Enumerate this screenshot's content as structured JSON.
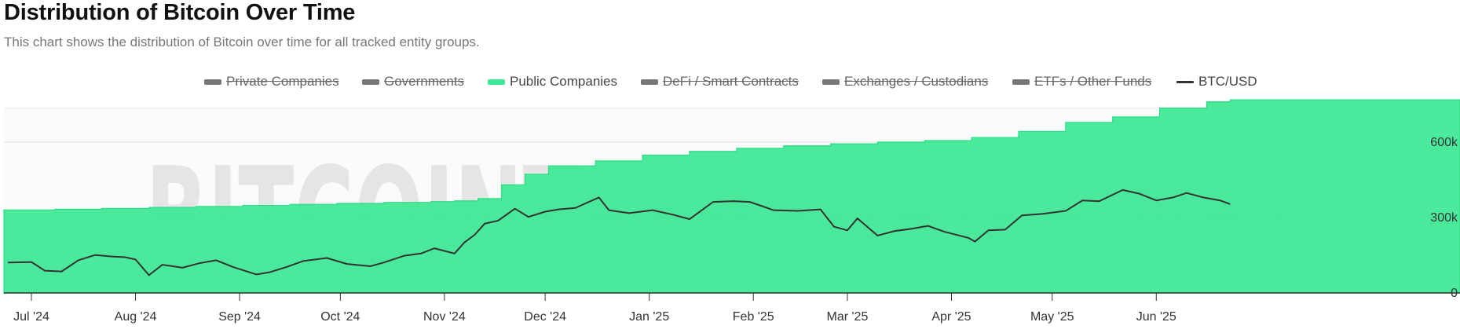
{
  "header": {
    "title": "Distribution of Bitcoin Over Time",
    "subtitle": "This chart shows the distribution of Bitcoin over time for all tracked entity groups."
  },
  "legend": [
    {
      "label": "Private Companies",
      "enabled": false,
      "color": "#777777",
      "kind": "area"
    },
    {
      "label": "Governments",
      "enabled": false,
      "color": "#777777",
      "kind": "area"
    },
    {
      "label": "Public Companies",
      "enabled": true,
      "color": "#40E896",
      "kind": "area"
    },
    {
      "label": "DeFi / Smart Contracts",
      "enabled": false,
      "color": "#777777",
      "kind": "area"
    },
    {
      "label": "Exchanges / Custodians",
      "enabled": false,
      "color": "#777777",
      "kind": "area"
    },
    {
      "label": "ETFs / Other Funds",
      "enabled": false,
      "color": "#777777",
      "kind": "area"
    },
    {
      "label": "BTC/USD",
      "enabled": true,
      "color": "#333333",
      "kind": "line"
    }
  ],
  "watermark": {
    "text": "BITCOINTREASURIES.NET",
    "tm": "tm"
  },
  "chart_data": {
    "type": "area",
    "x_ticks": [
      "Jul '24",
      "Aug '24",
      "Sep '24",
      "Oct '24",
      "Nov '24",
      "Dec '24",
      "Jan '25",
      "Feb '25",
      "Mar '25",
      "Apr '25",
      "May '25",
      "Jun '25"
    ],
    "y_ticks": [
      "0",
      "300k",
      "600k"
    ],
    "ylim": [
      0,
      800000
    ],
    "grid": true,
    "legend_position": "top-center",
    "series": [
      {
        "name": "Public Companies",
        "color": "#40E896",
        "x": [
          "2024-06-24",
          "2024-07-08",
          "2024-07-22",
          "2024-08-05",
          "2024-08-19",
          "2024-09-02",
          "2024-09-16",
          "2024-09-30",
          "2024-10-14",
          "2024-10-28",
          "2024-11-04",
          "2024-11-11",
          "2024-11-18",
          "2024-11-25",
          "2024-12-02",
          "2024-12-16",
          "2024-12-30",
          "2025-01-13",
          "2025-01-27",
          "2025-02-10",
          "2025-02-24",
          "2025-03-10",
          "2025-03-24",
          "2025-04-07",
          "2025-04-21",
          "2025-05-05",
          "2025-05-19",
          "2025-06-02",
          "2025-06-16",
          "2025-06-23"
        ],
        "values": [
          330000,
          333000,
          336000,
          340000,
          344000,
          348000,
          352000,
          356000,
          360000,
          363000,
          366000,
          375000,
          430000,
          472000,
          505000,
          525000,
          548000,
          563000,
          575000,
          585000,
          593000,
          600000,
          606000,
          618000,
          642000,
          678000,
          700000,
          735000,
          760000,
          768000
        ]
      },
      {
        "name": "BTC/USD",
        "color": "#333333",
        "axis": "secondary",
        "x": [
          "2024-06-24",
          "2024-07-01",
          "2024-07-05",
          "2024-07-10",
          "2024-07-15",
          "2024-07-20",
          "2024-07-25",
          "2024-07-29",
          "2024-08-01",
          "2024-08-05",
          "2024-08-09",
          "2024-08-15",
          "2024-08-20",
          "2024-08-25",
          "2024-08-30",
          "2024-09-06",
          "2024-09-10",
          "2024-09-15",
          "2024-09-20",
          "2024-09-27",
          "2024-10-03",
          "2024-10-10",
          "2024-10-14",
          "2024-10-20",
          "2024-10-25",
          "2024-10-29",
          "2024-11-04",
          "2024-11-07",
          "2024-11-10",
          "2024-11-13",
          "2024-11-17",
          "2024-11-22",
          "2024-11-26",
          "2024-12-01",
          "2024-12-05",
          "2024-12-10",
          "2024-12-17",
          "2024-12-20",
          "2024-12-26",
          "2025-01-02",
          "2025-01-08",
          "2025-01-13",
          "2025-01-20",
          "2025-01-26",
          "2025-01-31",
          "2025-02-07",
          "2025-02-14",
          "2025-02-21",
          "2025-02-25",
          "2025-03-01",
          "2025-03-04",
          "2025-03-10",
          "2025-03-15",
          "2025-03-20",
          "2025-03-25",
          "2025-03-30",
          "2025-04-06",
          "2025-04-08",
          "2025-04-12",
          "2025-04-17",
          "2025-04-22",
          "2025-04-28",
          "2025-05-05",
          "2025-05-10",
          "2025-05-15",
          "2025-05-22",
          "2025-05-27",
          "2025-06-01",
          "2025-06-06",
          "2025-06-10",
          "2025-06-15",
          "2025-06-20",
          "2025-06-23"
        ],
        "values": [
          62500,
          62800,
          57000,
          56500,
          64000,
          67500,
          66500,
          66000,
          64500,
          54000,
          61000,
          59000,
          62000,
          64000,
          59500,
          54500,
          56000,
          59500,
          63500,
          65500,
          61500,
          60000,
          62500,
          67000,
          68500,
          72000,
          68500,
          76000,
          81000,
          88500,
          90500,
          98500,
          93000,
          96500,
          98000,
          99000,
          106000,
          97500,
          95500,
          97500,
          94500,
          91500,
          103000,
          103500,
          103000,
          97500,
          97000,
          98000,
          86500,
          84000,
          92000,
          80500,
          83500,
          85000,
          87000,
          83000,
          79000,
          76500,
          84000,
          84500,
          94000,
          95000,
          97000,
          104000,
          103500,
          111000,
          108500,
          104000,
          106000,
          109000,
          106000,
          104000,
          101500
        ]
      }
    ]
  }
}
